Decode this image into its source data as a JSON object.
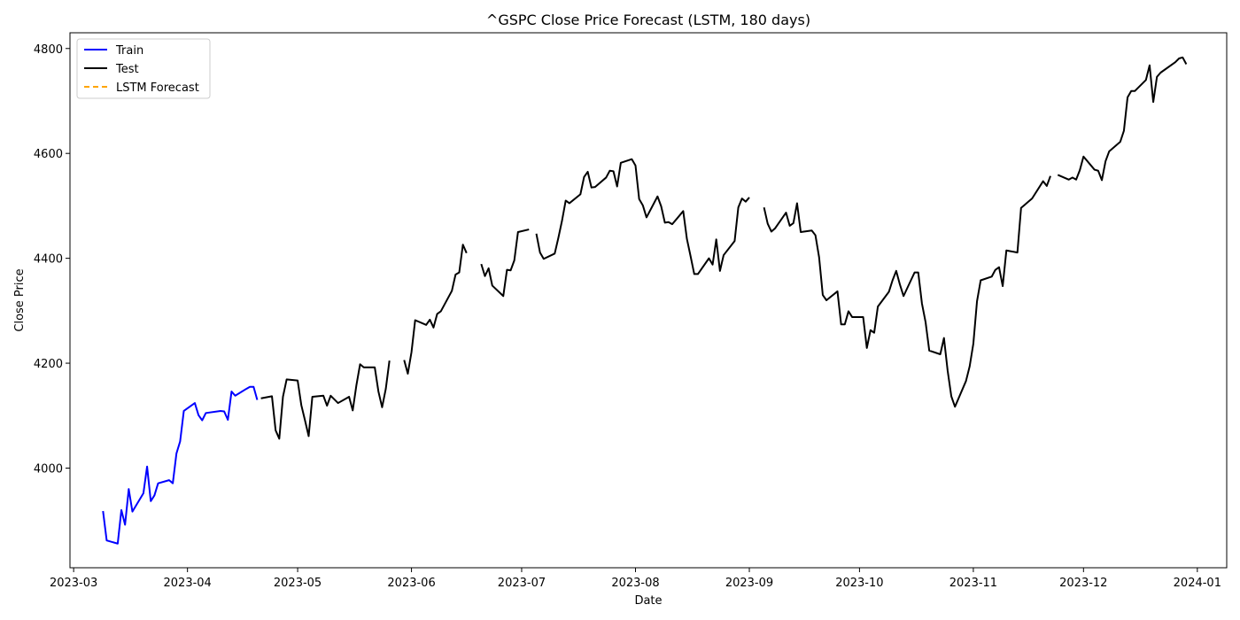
{
  "chart_data": {
    "type": "line",
    "title": "^GSPC Close Price Forecast (LSTM, 180 days)",
    "xlabel": "Date",
    "ylabel": "Close Price",
    "xlim": [
      "2023-02-28",
      "2024-01-09"
    ],
    "ylim": [
      3810,
      4830
    ],
    "x_ticks": [
      "2023-03-01",
      "2023-04-01",
      "2023-05-01",
      "2023-06-01",
      "2023-07-01",
      "2023-08-01",
      "2023-09-01",
      "2023-10-01",
      "2023-11-01",
      "2023-12-01",
      "2024-01-01"
    ],
    "x_tick_labels": [
      "2023-03",
      "2023-04",
      "2023-05",
      "2023-06",
      "2023-07",
      "2023-08",
      "2023-09",
      "2023-10",
      "2023-11",
      "2023-12",
      "2024-01"
    ],
    "y_ticks": [
      4000,
      4200,
      4400,
      4600,
      4800
    ],
    "y_tick_labels": [
      "4000",
      "4200",
      "4400",
      "4600",
      "4800"
    ],
    "grid": false,
    "legend": {
      "position": "top-left",
      "entries": [
        {
          "label": "Train",
          "color": "#0000ff",
          "style": "solid"
        },
        {
          "label": "Test",
          "color": "#000000",
          "style": "solid"
        },
        {
          "label": "LSTM Forecast",
          "color": "#ffa500",
          "style": "dashed"
        }
      ]
    },
    "series": [
      {
        "name": "Train",
        "color": "#0000ff",
        "style": "solid",
        "segments": [
          [
            [
              "2023-03-09",
              3918
            ],
            [
              "2023-03-10",
              3862
            ],
            [
              "2023-03-13",
              3856
            ],
            [
              "2023-03-14",
              3920
            ],
            [
              "2023-03-15",
              3892
            ],
            [
              "2023-03-16",
              3960
            ],
            [
              "2023-03-17",
              3917
            ],
            [
              "2023-03-20",
              3952
            ],
            [
              "2023-03-21",
              4003
            ],
            [
              "2023-03-22",
              3937
            ],
            [
              "2023-03-23",
              3948
            ],
            [
              "2023-03-24",
              3971
            ],
            [
              "2023-03-27",
              3977
            ],
            [
              "2023-03-28",
              3971
            ],
            [
              "2023-03-29",
              4028
            ],
            [
              "2023-03-30",
              4051
            ],
            [
              "2023-03-31",
              4109
            ],
            [
              "2023-04-03",
              4124
            ],
            [
              "2023-04-04",
              4101
            ],
            [
              "2023-04-05",
              4091
            ],
            [
              "2023-04-06",
              4105
            ],
            [
              "2023-04-10",
              4109
            ],
            [
              "2023-04-11",
              4108
            ],
            [
              "2023-04-12",
              4092
            ],
            [
              "2023-04-13",
              4146
            ],
            [
              "2023-04-14",
              4138
            ],
            [
              "2023-04-17",
              4151
            ],
            [
              "2023-04-18",
              4155
            ],
            [
              "2023-04-19",
              4155
            ],
            [
              "2023-04-20",
              4130
            ]
          ]
        ]
      },
      {
        "name": "Test",
        "color": "#000000",
        "style": "solid",
        "segments": [
          [
            [
              "2023-04-21",
              4133
            ],
            [
              "2023-04-24",
              4137
            ],
            [
              "2023-04-25",
              4072
            ],
            [
              "2023-04-26",
              4056
            ],
            [
              "2023-04-27",
              4136
            ],
            [
              "2023-04-28",
              4169
            ],
            [
              "2023-05-01",
              4167
            ],
            [
              "2023-05-02",
              4120
            ],
            [
              "2023-05-03",
              4091
            ],
            [
              "2023-05-04",
              4061
            ],
            [
              "2023-05-05",
              4136
            ],
            [
              "2023-05-08",
              4138
            ],
            [
              "2023-05-09",
              4119
            ],
            [
              "2023-05-10",
              4138
            ],
            [
              "2023-05-11",
              4131
            ],
            [
              "2023-05-12",
              4124
            ],
            [
              "2023-05-15",
              4136
            ],
            [
              "2023-05-16",
              4110
            ],
            [
              "2023-05-17",
              4158
            ],
            [
              "2023-05-18",
              4198
            ],
            [
              "2023-05-19",
              4192
            ],
            [
              "2023-05-22",
              4192
            ],
            [
              "2023-05-23",
              4146
            ],
            [
              "2023-05-24",
              4116
            ],
            [
              "2023-05-25",
              4151
            ],
            [
              "2023-05-26",
              4205
            ]
          ],
          [
            [
              "2023-05-30",
              4206
            ],
            [
              "2023-05-31",
              4180
            ],
            [
              "2023-06-01",
              4221
            ],
            [
              "2023-06-02",
              4282
            ],
            [
              "2023-06-05",
              4273
            ],
            [
              "2023-06-06",
              4283
            ],
            [
              "2023-06-07",
              4268
            ],
            [
              "2023-06-08",
              4294
            ],
            [
              "2023-06-09",
              4299
            ],
            [
              "2023-06-12",
              4338
            ],
            [
              "2023-06-13",
              4369
            ],
            [
              "2023-06-14",
              4373
            ],
            [
              "2023-06-15",
              4426
            ],
            [
              "2023-06-16",
              4410
            ]
          ],
          [
            [
              "2023-06-20",
              4389
            ],
            [
              "2023-06-21",
              4366
            ],
            [
              "2023-06-22",
              4381
            ],
            [
              "2023-06-23",
              4348
            ],
            [
              "2023-06-26",
              4328
            ],
            [
              "2023-06-27",
              4378
            ],
            [
              "2023-06-28",
              4377
            ],
            [
              "2023-06-29",
              4396
            ],
            [
              "2023-06-30",
              4450
            ],
            [
              "2023-07-03",
              4455
            ]
          ],
          [
            [
              "2023-07-05",
              4447
            ],
            [
              "2023-07-06",
              4411
            ],
            [
              "2023-07-07",
              4399
            ],
            [
              "2023-07-10",
              4409
            ],
            [
              "2023-07-11",
              4439
            ],
            [
              "2023-07-12",
              4472
            ],
            [
              "2023-07-13",
              4510
            ],
            [
              "2023-07-14",
              4505
            ],
            [
              "2023-07-17",
              4522
            ],
            [
              "2023-07-18",
              4555
            ],
            [
              "2023-07-19",
              4565
            ],
            [
              "2023-07-20",
              4535
            ],
            [
              "2023-07-21",
              4536
            ],
            [
              "2023-07-24",
              4554
            ],
            [
              "2023-07-25",
              4567
            ],
            [
              "2023-07-26",
              4566
            ],
            [
              "2023-07-27",
              4537
            ],
            [
              "2023-07-28",
              4582
            ],
            [
              "2023-07-31",
              4589
            ],
            [
              "2023-08-01",
              4577
            ],
            [
              "2023-08-02",
              4513
            ],
            [
              "2023-08-03",
              4501
            ],
            [
              "2023-08-04",
              4478
            ],
            [
              "2023-08-07",
              4518
            ],
            [
              "2023-08-08",
              4499
            ],
            [
              "2023-08-09",
              4468
            ],
            [
              "2023-08-10",
              4469
            ],
            [
              "2023-08-11",
              4465
            ],
            [
              "2023-08-14",
              4490
            ],
            [
              "2023-08-15",
              4437
            ],
            [
              "2023-08-16",
              4404
            ],
            [
              "2023-08-17",
              4370
            ],
            [
              "2023-08-18",
              4370
            ],
            [
              "2023-08-21",
              4400
            ],
            [
              "2023-08-22",
              4388
            ],
            [
              "2023-08-23",
              4436
            ],
            [
              "2023-08-24",
              4376
            ],
            [
              "2023-08-25",
              4406
            ],
            [
              "2023-08-28",
              4433
            ],
            [
              "2023-08-29",
              4497
            ],
            [
              "2023-08-30",
              4514
            ],
            [
              "2023-08-31",
              4508
            ],
            [
              "2023-09-01",
              4516
            ]
          ],
          [
            [
              "2023-09-05",
              4497
            ],
            [
              "2023-09-06",
              4466
            ],
            [
              "2023-09-07",
              4451
            ],
            [
              "2023-09-08",
              4457
            ],
            [
              "2023-09-11",
              4487
            ],
            [
              "2023-09-12",
              4462
            ],
            [
              "2023-09-13",
              4467
            ],
            [
              "2023-09-14",
              4505
            ],
            [
              "2023-09-15",
              4450
            ],
            [
              "2023-09-18",
              4453
            ],
            [
              "2023-09-19",
              4444
            ],
            [
              "2023-09-20",
              4402
            ],
            [
              "2023-09-21",
              4330
            ],
            [
              "2023-09-22",
              4320
            ],
            [
              "2023-09-25",
              4337
            ],
            [
              "2023-09-26",
              4274
            ],
            [
              "2023-09-27",
              4274
            ],
            [
              "2023-09-28",
              4299
            ],
            [
              "2023-09-29",
              4288
            ],
            [
              "2023-10-02",
              4288
            ],
            [
              "2023-10-03",
              4229
            ],
            [
              "2023-10-04",
              4263
            ],
            [
              "2023-10-05",
              4258
            ],
            [
              "2023-10-06",
              4308
            ],
            [
              "2023-10-09",
              4336
            ],
            [
              "2023-10-10",
              4358
            ],
            [
              "2023-10-11",
              4376
            ],
            [
              "2023-10-12",
              4350
            ],
            [
              "2023-10-13",
              4328
            ],
            [
              "2023-10-16",
              4373
            ],
            [
              "2023-10-17",
              4373
            ],
            [
              "2023-10-18",
              4314
            ],
            [
              "2023-10-19",
              4278
            ],
            [
              "2023-10-20",
              4224
            ],
            [
              "2023-10-23",
              4217
            ],
            [
              "2023-10-24",
              4248
            ],
            [
              "2023-10-25",
              4186
            ],
            [
              "2023-10-26",
              4137
            ],
            [
              "2023-10-27",
              4117
            ],
            [
              "2023-10-30",
              4166
            ],
            [
              "2023-10-31",
              4194
            ],
            [
              "2023-11-01",
              4237
            ],
            [
              "2023-11-02",
              4318
            ],
            [
              "2023-11-03",
              4358
            ],
            [
              "2023-11-06",
              4365
            ],
            [
              "2023-11-07",
              4378
            ],
            [
              "2023-11-08",
              4383
            ],
            [
              "2023-11-09",
              4347
            ],
            [
              "2023-11-10",
              4415
            ],
            [
              "2023-11-13",
              4411
            ],
            [
              "2023-11-14",
              4496
            ],
            [
              "2023-11-15",
              4502
            ],
            [
              "2023-11-16",
              4508
            ],
            [
              "2023-11-17",
              4514
            ],
            [
              "2023-11-20",
              4547
            ],
            [
              "2023-11-21",
              4538
            ],
            [
              "2023-11-22",
              4557
            ]
          ],
          [
            [
              "2023-11-24",
              4559
            ],
            [
              "2023-11-27",
              4550
            ],
            [
              "2023-11-28",
              4554
            ],
            [
              "2023-11-29",
              4550
            ],
            [
              "2023-11-30",
              4568
            ],
            [
              "2023-12-01",
              4594
            ],
            [
              "2023-12-04",
              4569
            ],
            [
              "2023-12-05",
              4567
            ],
            [
              "2023-12-06",
              4549
            ],
            [
              "2023-12-07",
              4585
            ],
            [
              "2023-12-08",
              4604
            ],
            [
              "2023-12-11",
              4622
            ],
            [
              "2023-12-12",
              4643
            ],
            [
              "2023-12-13",
              4707
            ],
            [
              "2023-12-14",
              4719
            ],
            [
              "2023-12-15",
              4719
            ],
            [
              "2023-12-18",
              4740
            ],
            [
              "2023-12-19",
              4768
            ],
            [
              "2023-12-20",
              4698
            ],
            [
              "2023-12-21",
              4746
            ],
            [
              "2023-12-22",
              4754
            ],
            [
              "2023-12-26",
              4774
            ],
            [
              "2023-12-27",
              4781
            ],
            [
              "2023-12-28",
              4783
            ],
            [
              "2023-12-29",
              4770
            ]
          ]
        ]
      },
      {
        "name": "LSTM Forecast",
        "color": "#ffa500",
        "style": "dashed",
        "segments": []
      }
    ]
  }
}
